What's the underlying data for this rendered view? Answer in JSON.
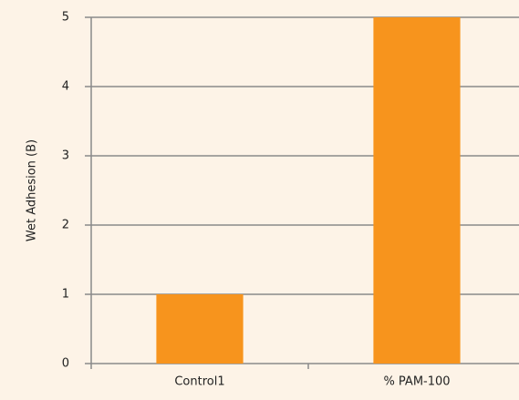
{
  "chart_data": {
    "type": "bar",
    "y_label": "Wet Adhesion (B)",
    "categories": [
      "Control1",
      "% PAM-100"
    ],
    "values": [
      1,
      5
    ],
    "color": "#f7941d",
    "ylim": [
      0,
      5
    ],
    "yticks": [
      0,
      1,
      2,
      3,
      4,
      5
    ],
    "grid": true
  }
}
